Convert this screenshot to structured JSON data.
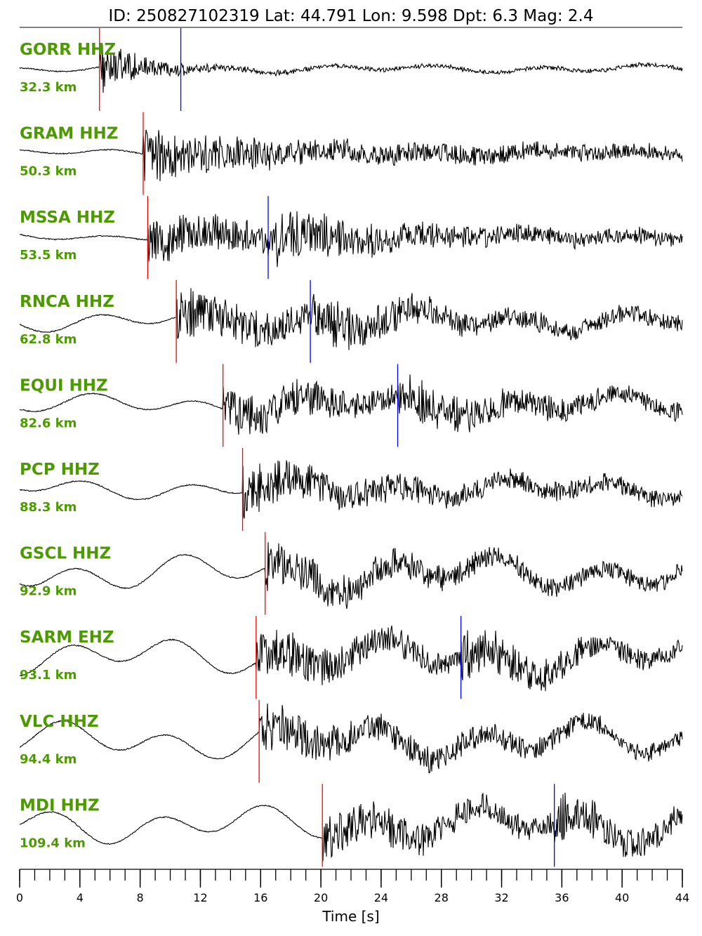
{
  "chart_data": {
    "type": "line",
    "title": "ID: 250827102319 Lat:  44.791 Lon:   9.598 Dpt:     6.3 Mag:   2.4",
    "event": {
      "id": "250827102319",
      "lat": 44.791,
      "lon": 9.598,
      "depth": 6.3,
      "mag": 2.4
    },
    "xlabel": "Time [s]",
    "xlim": [
      0,
      44
    ],
    "x_major_ticks": [
      0,
      4,
      8,
      12,
      16,
      20,
      24,
      28,
      32,
      36,
      40,
      44
    ],
    "x_minor_step": 1,
    "grid": false,
    "colors": {
      "label": "#4c9a00",
      "p_pick": "#ff0000",
      "s_pick": "#0000ff",
      "trace": "#000000"
    },
    "traces": [
      {
        "name": "GORR HHZ",
        "distance": "32.3 km",
        "p_pick": 5.3,
        "s_pick": 10.7
      },
      {
        "name": "GRAM HHZ",
        "distance": "50.3 km",
        "p_pick": 8.2,
        "s_pick": null
      },
      {
        "name": "MSSA HHZ",
        "distance": "53.5 km",
        "p_pick": 8.5,
        "s_pick": 16.5
      },
      {
        "name": "RNCA HHZ",
        "distance": "62.8 km",
        "p_pick": 10.4,
        "s_pick": 19.3
      },
      {
        "name": "EQUI HHZ",
        "distance": "82.6 km",
        "p_pick": 13.5,
        "s_pick": 25.1
      },
      {
        "name": "PCP HHZ",
        "distance": "88.3 km",
        "p_pick": 14.8,
        "s_pick": null
      },
      {
        "name": "GSCL HHZ",
        "distance": "92.9 km",
        "p_pick": 16.3,
        "s_pick": null
      },
      {
        "name": "SARM EHZ",
        "distance": "93.1 km",
        "p_pick": 15.7,
        "s_pick": 29.3
      },
      {
        "name": "VLC HHZ",
        "distance": "94.4 km",
        "p_pick": 15.9,
        "s_pick": null
      },
      {
        "name": "MDI HHZ",
        "distance": "109.4 km",
        "p_pick": 20.1,
        "s_pick": 35.5
      }
    ]
  }
}
